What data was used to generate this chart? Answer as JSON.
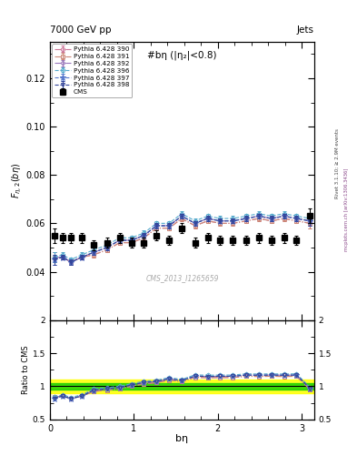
{
  "title_top": "7000 GeV pp",
  "title_right": "Jets",
  "plot_title": "#bη (|η₂|<0.8)",
  "watermark": "CMS_2013_I1265659",
  "rivet_text": "Rivet 3.1.10; ≥ 2.9M events",
  "arxiv_text": "mcplots.cern.ch [arXiv:1306.3436]",
  "xlabel": "bη",
  "ylabel": "F_{η,2}(bη)",
  "xlim": [
    0,
    3.15
  ],
  "ylim_main": [
    0.02,
    0.135
  ],
  "ylim_ratio": [
    0.5,
    2.0
  ],
  "yticks_main": [
    0.04,
    0.06,
    0.08,
    0.1,
    0.12
  ],
  "yticks_ratio": [
    0.5,
    1.0,
    1.5,
    2.0
  ],
  "cms_x": [
    0.05,
    0.15,
    0.25,
    0.38,
    0.52,
    0.68,
    0.83,
    0.97,
    1.12,
    1.27,
    1.42,
    1.57,
    1.73,
    1.88,
    2.03,
    2.18,
    2.34,
    2.49,
    2.64,
    2.79,
    2.94,
    3.1
  ],
  "cms_y": [
    0.055,
    0.054,
    0.054,
    0.054,
    0.051,
    0.052,
    0.054,
    0.052,
    0.052,
    0.055,
    0.053,
    0.058,
    0.052,
    0.054,
    0.053,
    0.053,
    0.053,
    0.054,
    0.053,
    0.054,
    0.053,
    0.063
  ],
  "cms_yerr": [
    0.003,
    0.002,
    0.002,
    0.002,
    0.002,
    0.002,
    0.002,
    0.002,
    0.002,
    0.002,
    0.002,
    0.002,
    0.002,
    0.002,
    0.002,
    0.002,
    0.002,
    0.002,
    0.002,
    0.002,
    0.002,
    0.003
  ],
  "mc_x": [
    0.05,
    0.15,
    0.25,
    0.38,
    0.52,
    0.68,
    0.83,
    0.97,
    1.12,
    1.27,
    1.42,
    1.57,
    1.73,
    1.88,
    2.03,
    2.18,
    2.34,
    2.49,
    2.64,
    2.79,
    2.94,
    3.1
  ],
  "series": [
    {
      "label": "Pythia 6.428 390",
      "color": "#cc7799",
      "marker": "o",
      "marker_fill": "none",
      "linestyle": "-.",
      "y": [
        0.046,
        0.046,
        0.044,
        0.046,
        0.047,
        0.049,
        0.052,
        0.052,
        0.054,
        0.058,
        0.058,
        0.062,
        0.059,
        0.061,
        0.06,
        0.06,
        0.061,
        0.062,
        0.061,
        0.062,
        0.061,
        0.06
      ],
      "yerr": [
        0.002,
        0.001,
        0.001,
        0.001,
        0.001,
        0.001,
        0.001,
        0.001,
        0.001,
        0.001,
        0.001,
        0.001,
        0.001,
        0.001,
        0.001,
        0.001,
        0.001,
        0.001,
        0.001,
        0.001,
        0.001,
        0.002
      ]
    },
    {
      "label": "Pythia 6.428 391",
      "color": "#cc8877",
      "marker": "s",
      "marker_fill": "none",
      "linestyle": "-.",
      "y": [
        0.046,
        0.046,
        0.044,
        0.046,
        0.047,
        0.049,
        0.052,
        0.052,
        0.054,
        0.058,
        0.058,
        0.062,
        0.059,
        0.061,
        0.06,
        0.06,
        0.061,
        0.062,
        0.061,
        0.062,
        0.061,
        0.06
      ],
      "yerr": [
        0.002,
        0.001,
        0.001,
        0.001,
        0.001,
        0.001,
        0.001,
        0.001,
        0.001,
        0.001,
        0.001,
        0.001,
        0.001,
        0.001,
        0.001,
        0.001,
        0.001,
        0.001,
        0.001,
        0.001,
        0.001,
        0.002
      ]
    },
    {
      "label": "Pythia 6.428 392",
      "color": "#9977bb",
      "marker": "D",
      "marker_fill": "none",
      "linestyle": "-.",
      "y": [
        0.046,
        0.046,
        0.044,
        0.046,
        0.048,
        0.05,
        0.053,
        0.053,
        0.055,
        0.059,
        0.059,
        0.063,
        0.06,
        0.062,
        0.061,
        0.061,
        0.062,
        0.063,
        0.062,
        0.063,
        0.062,
        0.061
      ],
      "yerr": [
        0.002,
        0.001,
        0.001,
        0.001,
        0.001,
        0.001,
        0.001,
        0.001,
        0.001,
        0.001,
        0.001,
        0.001,
        0.001,
        0.001,
        0.001,
        0.001,
        0.001,
        0.001,
        0.001,
        0.001,
        0.001,
        0.002
      ]
    },
    {
      "label": "Pythia 6.428 396",
      "color": "#55aacc",
      "marker": "p",
      "marker_fill": "none",
      "linestyle": "--",
      "y": [
        0.046,
        0.047,
        0.045,
        0.047,
        0.049,
        0.051,
        0.054,
        0.054,
        0.056,
        0.06,
        0.06,
        0.064,
        0.061,
        0.063,
        0.062,
        0.062,
        0.063,
        0.064,
        0.063,
        0.064,
        0.063,
        0.062
      ],
      "yerr": [
        0.002,
        0.001,
        0.001,
        0.001,
        0.001,
        0.001,
        0.001,
        0.001,
        0.001,
        0.001,
        0.001,
        0.001,
        0.001,
        0.001,
        0.001,
        0.001,
        0.001,
        0.001,
        0.001,
        0.001,
        0.001,
        0.002
      ]
    },
    {
      "label": "Pythia 6.428 397",
      "color": "#5577cc",
      "marker": "*",
      "marker_fill": "none",
      "linestyle": "--",
      "y": [
        0.045,
        0.046,
        0.044,
        0.046,
        0.048,
        0.05,
        0.053,
        0.053,
        0.055,
        0.059,
        0.059,
        0.063,
        0.06,
        0.062,
        0.061,
        0.061,
        0.062,
        0.063,
        0.062,
        0.063,
        0.062,
        0.061
      ],
      "yerr": [
        0.002,
        0.001,
        0.001,
        0.001,
        0.001,
        0.001,
        0.001,
        0.001,
        0.001,
        0.001,
        0.001,
        0.001,
        0.001,
        0.001,
        0.001,
        0.001,
        0.001,
        0.001,
        0.001,
        0.001,
        0.001,
        0.002
      ]
    },
    {
      "label": "Pythia 6.428 398",
      "color": "#334499",
      "marker": "v",
      "marker_fill": "none",
      "linestyle": "--",
      "y": [
        0.045,
        0.046,
        0.044,
        0.046,
        0.048,
        0.05,
        0.053,
        0.053,
        0.055,
        0.059,
        0.059,
        0.063,
        0.06,
        0.062,
        0.061,
        0.061,
        0.062,
        0.063,
        0.062,
        0.063,
        0.062,
        0.061
      ],
      "yerr": [
        0.002,
        0.001,
        0.001,
        0.001,
        0.001,
        0.001,
        0.001,
        0.001,
        0.001,
        0.001,
        0.001,
        0.001,
        0.001,
        0.001,
        0.001,
        0.001,
        0.001,
        0.001,
        0.001,
        0.001,
        0.001,
        0.002
      ]
    }
  ],
  "ratio_band_yellow": 0.1,
  "ratio_band_green": 0.05,
  "bg_color": "#ffffff"
}
